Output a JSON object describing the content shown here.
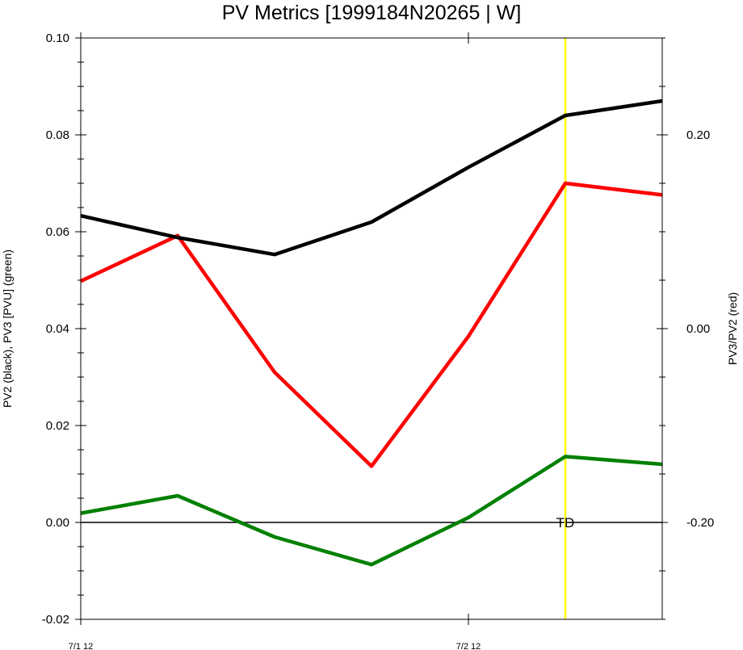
{
  "chart_data": {
    "type": "line",
    "title": "PV Metrics [1999184N20265 | W]",
    "ylabel_left": "PV2 (black), PV3 [PVU] (green)",
    "ylabel_right": "PV3/PV2 (red)",
    "x": [
      0,
      1,
      2,
      3,
      4,
      5,
      6
    ],
    "xticks": [
      {
        "x": 0,
        "label": "7/1 12"
      },
      {
        "x": 4,
        "label": "7/2 12"
      }
    ],
    "ylim_left": [
      -0.02,
      0.1
    ],
    "yticks_left": [
      "-0.02",
      "0.00",
      "0.02",
      "0.04",
      "0.06",
      "0.08",
      "0.10"
    ],
    "ylim_right": [
      -0.3,
      0.3
    ],
    "yticks_right": [
      "-0.20",
      "0.00",
      "0.20"
    ],
    "series": [
      {
        "axis": "left",
        "color": "#000000",
        "values": [
          0.0633,
          0.0588,
          0.0553,
          0.062,
          0.0733,
          0.084,
          0.087
        ]
      },
      {
        "axis": "left",
        "color": "#008000",
        "values": [
          0.0019,
          0.0055,
          -0.003,
          -0.0087,
          0.001,
          0.0136,
          0.012
        ]
      },
      {
        "axis": "right",
        "color": "#ff0000",
        "values": [
          0.049,
          0.096,
          -0.045,
          -0.142,
          -0.008,
          0.15,
          0.138
        ]
      }
    ],
    "reference_line": {
      "y": 0.0,
      "axis": "left",
      "color": "#000000"
    },
    "vline": {
      "x": 5,
      "color": "#ffff00",
      "label": "TD"
    },
    "grid": false,
    "legend": "none"
  }
}
